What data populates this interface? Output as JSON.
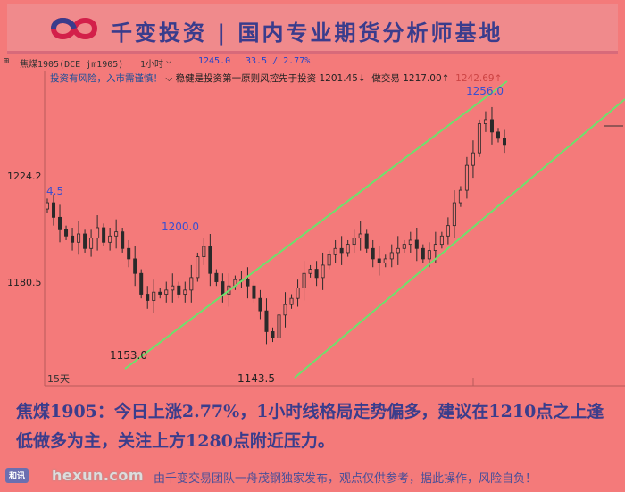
{
  "banner": {
    "title": "千变投资 | 国内专业期货分析师基地"
  },
  "toolbar": {
    "symbol": "焦煤1905(DCE jm1905)",
    "period": "1小时",
    "price": "1245.0",
    "change": "33.5 / 2.77%"
  },
  "notice": {
    "warning": "投资有风险，入市需谨慎！",
    "motto": "稳健是投资第一原则风控先于投资",
    "level1": "1201.45↓",
    "trade_label": "做交易",
    "level2": "1217.00↑",
    "level3": "1242.69↑"
  },
  "chart_data": {
    "type": "candlestick",
    "y_ticks": [
      "1224.2",
      "1180.5"
    ],
    "left_value_label": "4.5",
    "annotations": [
      "1256.0",
      "1200.0",
      "1153.0",
      "1143.5"
    ],
    "x_label": "15天",
    "channel_color": "#6ce26c",
    "candle_color": "#2a2a2a",
    "ylim": [
      1130,
      1270
    ],
    "closes": [
      1212,
      1205,
      1199,
      1196,
      1193,
      1197,
      1190,
      1195,
      1200,
      1193,
      1196,
      1198,
      1190,
      1185,
      1178,
      1168,
      1165,
      1169,
      1168,
      1170,
      1172,
      1168,
      1170,
      1176,
      1186,
      1191,
      1178,
      1174,
      1168,
      1172,
      1175,
      1175,
      1172,
      1166,
      1160,
      1150,
      1147,
      1158,
      1163,
      1166,
      1171,
      1178,
      1180,
      1176,
      1182,
      1187,
      1190,
      1188,
      1192,
      1195,
      1197,
      1190,
      1185,
      1183,
      1185,
      1188,
      1190,
      1192,
      1194,
      1190,
      1185,
      1189,
      1192,
      1196,
      1201,
      1212,
      1218,
      1230,
      1236,
      1250,
      1252,
      1246,
      1243,
      1240
    ]
  },
  "commentary": "焦煤1905：今日上涨2.77%，1小时线格局走势偏多，建议在1210点之上逢低做多为主，关注上方1280点附近压力。",
  "footer": {
    "badge": "和讯",
    "site": "hexun.com",
    "text": "由千变交易团队一舟茂钢独家发布，观点仅供参考，据此操作，风险自负！"
  }
}
